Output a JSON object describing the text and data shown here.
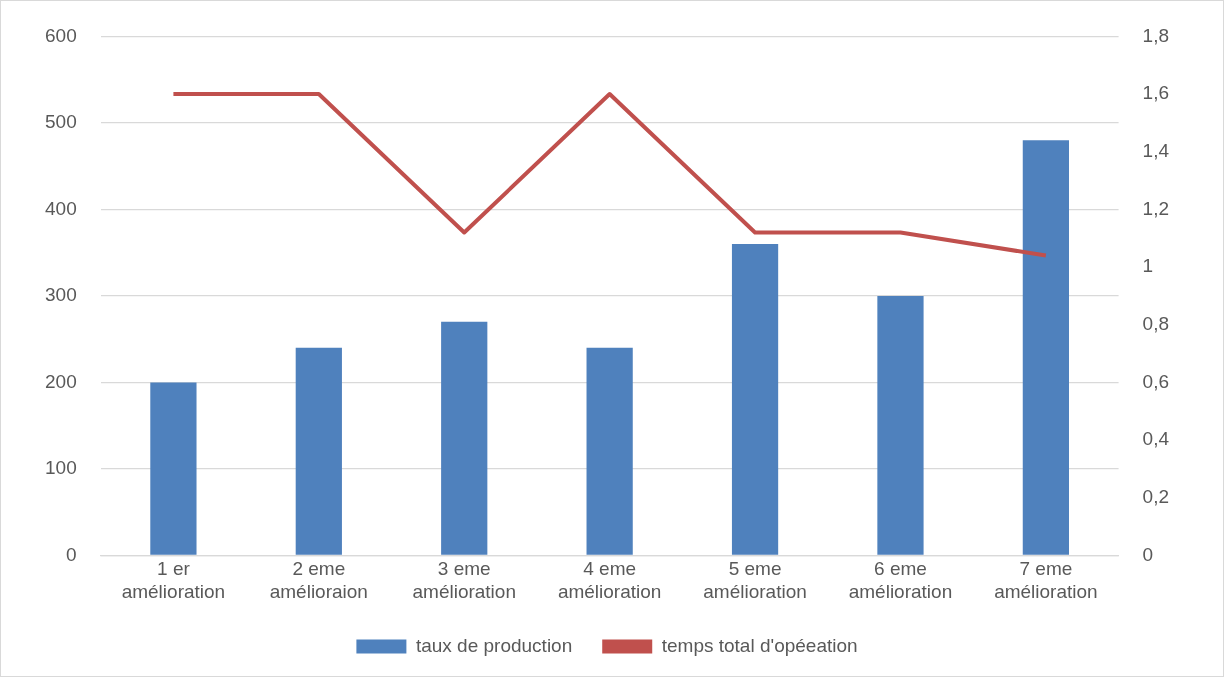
{
  "chart_data": {
    "type": "bar",
    "categories": [
      "1 er amélioration",
      "2 eme amélioraion",
      "3 eme amélioration",
      "4 eme amélioration",
      "5 eme amélioration",
      "6 eme amélioration",
      "7 eme amélioration"
    ],
    "series": [
      {
        "name": "taux de production",
        "color": "#4f81bd",
        "values": [
          200,
          240,
          270,
          240,
          360,
          300,
          480
        ]
      },
      {
        "name": "temps total d'opéeation",
        "type": "line",
        "axis": "y2",
        "color": "#c0504d",
        "values": [
          1.6,
          1.6,
          1.12,
          1.6,
          1.12,
          1.12,
          1.04
        ]
      }
    ],
    "ylim": [
      0,
      600
    ],
    "yticks": [
      0,
      100,
      200,
      300,
      400,
      500,
      600
    ],
    "y2lim": [
      0,
      1.8
    ],
    "y2ticks": [
      {
        "value": 0,
        "label": "0"
      },
      {
        "value": 0.2,
        "label": "0,2"
      },
      {
        "value": 0.4,
        "label": "0,4"
      },
      {
        "value": 0.6,
        "label": "0,6"
      },
      {
        "value": 0.8,
        "label": "0,8"
      },
      {
        "value": 1,
        "label": "1"
      },
      {
        "value": 1.2,
        "label": "1,2"
      },
      {
        "value": 1.4,
        "label": "1,4"
      },
      {
        "value": 1.6,
        "label": "1,6"
      },
      {
        "value": 1.8,
        "label": "1,8"
      }
    ],
    "grid": "y",
    "legend": "bottom",
    "marker": "none"
  }
}
